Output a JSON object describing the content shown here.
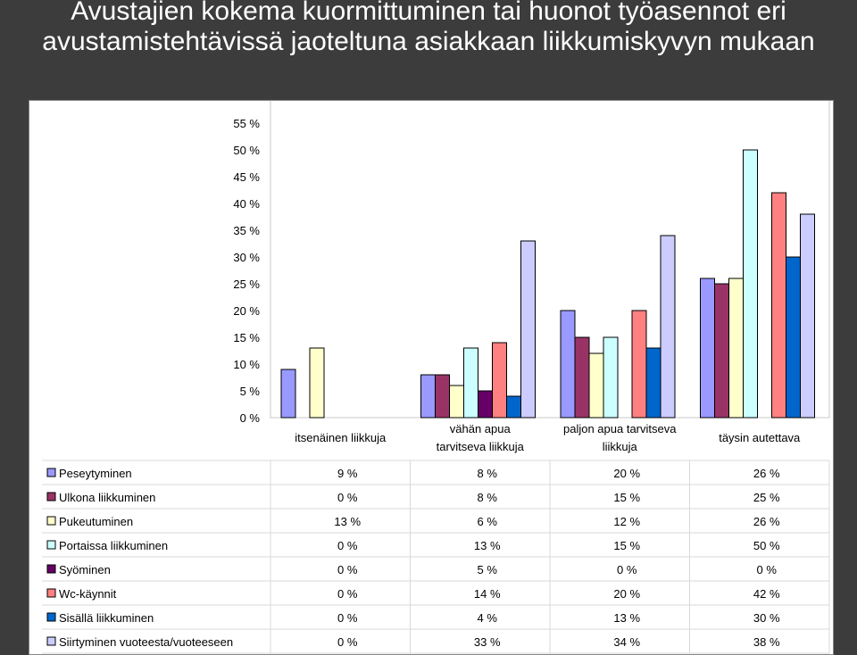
{
  "title": {
    "line1": "Avustajien kokema kuormittuminen tai huonot työasennot eri",
    "line2": "avustamistehtävissä jaoteltuna asiakkaan liikkumiskyvyn mukaan"
  },
  "chart_data": {
    "type": "bar",
    "categories": [
      [
        "itsenäinen liikkuja"
      ],
      [
        "vähän apua",
        "tarvitseva liikkuja"
      ],
      [
        "paljon apua tarvitseva",
        "liikkuja"
      ],
      [
        "täysin autettava"
      ]
    ],
    "series": [
      {
        "name": "Peseytyminen",
        "color": "#9999ff",
        "values": [
          9,
          8,
          20,
          26
        ],
        "labels": [
          "9 %",
          "8 %",
          "20 %",
          "26 %"
        ]
      },
      {
        "name": "Ulkona liikkuminen",
        "color": "#993366",
        "values": [
          0,
          8,
          15,
          25
        ],
        "labels": [
          "0 %",
          "8 %",
          "15 %",
          "25 %"
        ]
      },
      {
        "name": "Pukeutuminen",
        "color": "#ffffcc",
        "values": [
          13,
          6,
          12,
          26
        ],
        "labels": [
          "13 %",
          "6 %",
          "12 %",
          "26 %"
        ]
      },
      {
        "name": "Portaissa liikkuminen",
        "color": "#ccffff",
        "values": [
          0,
          13,
          15,
          50
        ],
        "labels": [
          "0 %",
          "13 %",
          "15 %",
          "50 %"
        ]
      },
      {
        "name": "Syöminen",
        "color": "#660066",
        "values": [
          0,
          5,
          0,
          0
        ],
        "labels": [
          "0 %",
          "5 %",
          "0 %",
          "0 %"
        ]
      },
      {
        "name": "Wc-käynnit",
        "color": "#ff8080",
        "values": [
          0,
          14,
          20,
          42
        ],
        "labels": [
          "0 %",
          "14 %",
          "20 %",
          "42 %"
        ]
      },
      {
        "name": "Sisällä liikkuminen",
        "color": "#0066cc",
        "values": [
          0,
          4,
          13,
          30
        ],
        "labels": [
          "0 %",
          "4 %",
          "13 %",
          "30 %"
        ]
      },
      {
        "name": "Siirtyminen vuoteesta/vuoteeseen",
        "color": "#ccccff",
        "values": [
          0,
          33,
          34,
          38
        ],
        "labels": [
          "0 %",
          "33 %",
          "34 %",
          "38 %"
        ]
      }
    ],
    "yticks": [
      "0 %",
      "5 %",
      "10 %",
      "15 %",
      "20 %",
      "25 %",
      "30 %",
      "35 %",
      "40 %",
      "45 %",
      "50 %",
      "55 %"
    ],
    "ylim": [
      0,
      55
    ],
    "grid": false,
    "legend": "data-table-below"
  }
}
